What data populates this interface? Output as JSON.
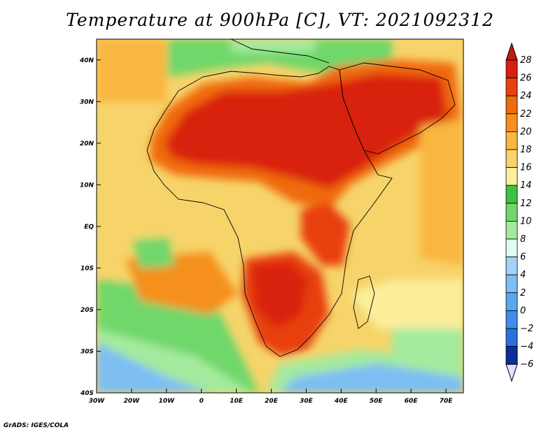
{
  "title": "Temperature at 900hPa [C], VT: 2021092312",
  "credit": "GrADS: IGES/COLA",
  "map": {
    "lon_range": [
      -30,
      75
    ],
    "lat_range": [
      -40,
      45
    ],
    "x_ticks": [
      {
        "value": -30,
        "label": "30W"
      },
      {
        "value": -20,
        "label": "20W"
      },
      {
        "value": -10,
        "label": "10W"
      },
      {
        "value": 0,
        "label": "0"
      },
      {
        "value": 10,
        "label": "10E"
      },
      {
        "value": 20,
        "label": "20E"
      },
      {
        "value": 30,
        "label": "30E"
      },
      {
        "value": 40,
        "label": "40E"
      },
      {
        "value": 50,
        "label": "50E"
      },
      {
        "value": 60,
        "label": "60E"
      },
      {
        "value": 70,
        "label": "70E"
      }
    ],
    "y_ticks": [
      {
        "value": 40,
        "label": "40N"
      },
      {
        "value": 30,
        "label": "30N"
      },
      {
        "value": 20,
        "label": "20N"
      },
      {
        "value": 10,
        "label": "10N"
      },
      {
        "value": 0,
        "label": "EQ"
      },
      {
        "value": -10,
        "label": "10S"
      },
      {
        "value": -20,
        "label": "20S"
      },
      {
        "value": -30,
        "label": "30S"
      },
      {
        "value": -40,
        "label": "40S"
      }
    ]
  },
  "colorbar": {
    "levels": [
      28,
      26,
      24,
      22,
      20,
      18,
      16,
      14,
      12,
      10,
      8,
      6,
      4,
      2,
      0,
      -2,
      -4,
      -6
    ],
    "labels": [
      "28",
      "26",
      "24",
      "22",
      "20",
      "18",
      "16",
      "14",
      "12",
      "10",
      "8",
      "6",
      "4",
      "2",
      "0",
      "−2",
      "−4",
      "−6"
    ],
    "colors": [
      "#d9200f",
      "#e8400f",
      "#f06a0f",
      "#f5901c",
      "#f9b640",
      "#fbd36a",
      "#fbef9c",
      "#3fc23f",
      "#6fd76b",
      "#a4ea9e",
      "#e0fbf2",
      "#a3d4f7",
      "#7dbef3",
      "#5aa6ef",
      "#3d8ee8",
      "#2770dd",
      "#1553c4",
      "#0a2e9a"
    ],
    "top_color": "#c41a0c",
    "bottom_color": "#dbe4ff"
  }
}
